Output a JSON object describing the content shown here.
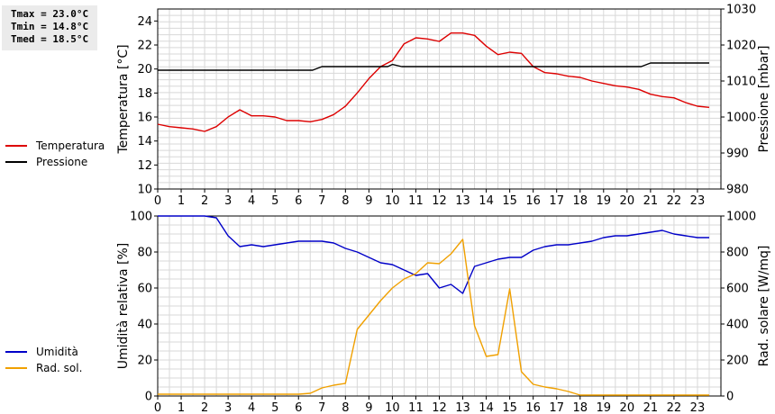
{
  "stats": {
    "tmax": "Tmax = 23.0°C",
    "tmin": "Tmin = 14.8°C",
    "tmed": "Tmed = 18.5°C"
  },
  "chart_data": [
    {
      "type": "line",
      "xlim": [
        0,
        24
      ],
      "xticks": [
        "0",
        "1",
        "2",
        "3",
        "4",
        "5",
        "6",
        "7",
        "8",
        "9",
        "10",
        "11",
        "12",
        "13",
        "14",
        "15",
        "16",
        "17",
        "18",
        "19",
        "20",
        "21",
        "22",
        "23"
      ],
      "ylabel": "Temperatura [°C]",
      "ylim": [
        10,
        25
      ],
      "yticks": [
        "10",
        "12",
        "14",
        "16",
        "18",
        "20",
        "22",
        "24"
      ],
      "y2label": "Pressione [mbar]",
      "y2lim": [
        980,
        1030
      ],
      "y2ticks": [
        "980",
        "990",
        "1000",
        "1010",
        "1020",
        "1030"
      ],
      "grid": true,
      "legend_position": "left",
      "series": [
        {
          "name": "Temperatura",
          "color": "#dd0000",
          "axis": "left",
          "x": [
            0,
            0.5,
            1,
            1.5,
            2,
            2.5,
            3,
            3.5,
            4,
            4.5,
            5,
            5.5,
            6,
            6.5,
            7,
            7.5,
            8,
            8.5,
            9,
            9.5,
            10,
            10.5,
            11,
            11.5,
            12,
            12.5,
            13,
            13.5,
            14,
            14.5,
            15,
            15.5,
            16,
            16.5,
            17,
            17.5,
            18,
            18.5,
            19,
            19.5,
            20,
            20.5,
            21,
            21.5,
            22,
            22.5,
            23,
            23.5
          ],
          "values": [
            15.4,
            15.2,
            15.1,
            15.0,
            14.8,
            15.2,
            16.0,
            16.6,
            16.1,
            16.1,
            16.0,
            15.7,
            15.7,
            15.6,
            15.8,
            16.2,
            16.9,
            18.0,
            19.2,
            20.2,
            20.7,
            22.1,
            22.6,
            22.5,
            22.3,
            23.0,
            23.0,
            22.8,
            21.9,
            21.2,
            21.4,
            21.3,
            20.2,
            19.7,
            19.6,
            19.4,
            19.3,
            19.0,
            18.8,
            18.6,
            18.5,
            18.3,
            17.9,
            17.7,
            17.6,
            17.2,
            16.9,
            16.8
          ]
        },
        {
          "name": "Pressione",
          "color": "#000000",
          "axis": "right",
          "x": [
            0,
            6.6,
            7,
            9.8,
            10,
            10.4,
            20.6,
            21,
            23.5
          ],
          "values": [
            1013,
            1013,
            1014,
            1014,
            1014.6,
            1014,
            1014,
            1015,
            1015
          ]
        }
      ]
    },
    {
      "type": "line",
      "xlim": [
        0,
        24
      ],
      "xticks": [
        "0",
        "1",
        "2",
        "3",
        "4",
        "5",
        "6",
        "7",
        "8",
        "9",
        "10",
        "11",
        "12",
        "13",
        "14",
        "15",
        "16",
        "17",
        "18",
        "19",
        "20",
        "21",
        "22",
        "23"
      ],
      "ylabel": "Umidità relativa [%]",
      "ylim": [
        0,
        100
      ],
      "yticks": [
        "0",
        "20",
        "40",
        "60",
        "80",
        "100"
      ],
      "y2label": "Rad. solare [W/mq]",
      "y2lim": [
        0,
        1000
      ],
      "y2ticks": [
        "0",
        "200",
        "400",
        "600",
        "800",
        "1000"
      ],
      "grid": true,
      "legend_position": "left",
      "series": [
        {
          "name": "Umidità",
          "color": "#0000c8",
          "axis": "left",
          "x": [
            0,
            0.5,
            1,
            1.5,
            2,
            2.5,
            3,
            3.5,
            4,
            4.5,
            5,
            5.5,
            6,
            6.5,
            7,
            7.5,
            8,
            8.5,
            9,
            9.5,
            10,
            10.5,
            11,
            11.5,
            12,
            12.5,
            13,
            13.5,
            14,
            14.5,
            15,
            15.5,
            16,
            16.5,
            17,
            17.5,
            18,
            18.5,
            19,
            19.5,
            20,
            20.5,
            21,
            21.5,
            22,
            22.5,
            23,
            23.5
          ],
          "values": [
            100,
            100,
            100,
            100,
            100,
            99,
            89,
            83,
            84,
            83,
            84,
            85,
            86,
            86,
            86,
            85,
            82,
            80,
            77,
            74,
            73,
            70,
            67,
            68,
            60,
            62,
            57,
            72,
            74,
            76,
            77,
            77,
            81,
            83,
            84,
            84,
            85,
            86,
            88,
            89,
            89,
            90,
            91,
            92,
            90,
            89,
            88,
            88
          ]
        },
        {
          "name": "Rad. sol.",
          "color": "#f0a000",
          "axis": "right",
          "x": [
            0,
            0.5,
            1,
            1.5,
            2,
            2.5,
            3,
            3.5,
            4,
            4.5,
            5,
            5.5,
            6,
            6.5,
            7,
            7.5,
            8,
            8.5,
            9,
            9.5,
            10,
            10.5,
            11,
            11.5,
            12,
            12.5,
            13,
            13.5,
            14,
            14.5,
            15,
            15.5,
            16,
            16.5,
            17,
            17.5,
            18,
            18.5,
            19,
            19.5,
            20,
            20.5,
            21,
            21.5,
            22,
            22.5,
            23,
            23.5
          ],
          "values": [
            10,
            10,
            10,
            10,
            10,
            10,
            10,
            10,
            10,
            10,
            10,
            10,
            10,
            15,
            45,
            60,
            70,
            370,
            450,
            530,
            600,
            650,
            680,
            740,
            735,
            790,
            870,
            390,
            220,
            230,
            595,
            135,
            65,
            50,
            40,
            25,
            5,
            5,
            5,
            5,
            5,
            5,
            5,
            5,
            5,
            5,
            5,
            5
          ]
        }
      ]
    }
  ]
}
